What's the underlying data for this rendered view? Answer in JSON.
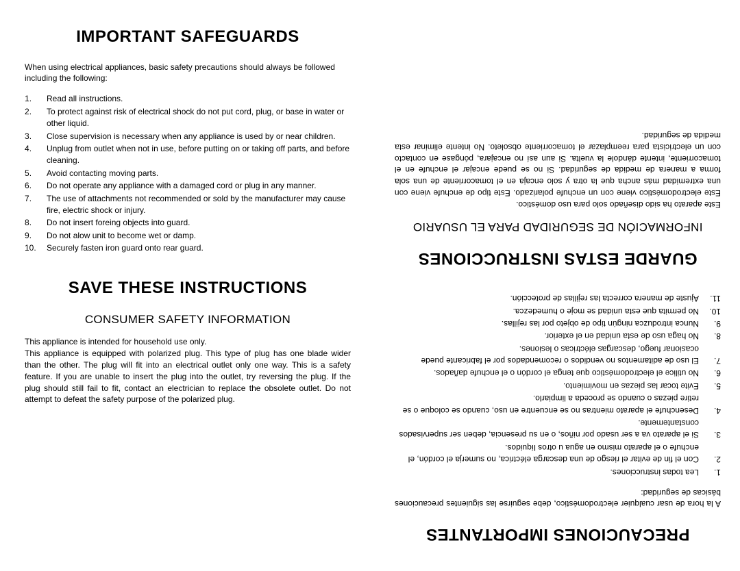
{
  "left": {
    "title": "IMPORTANT SAFEGUARDS",
    "intro": "When using electrical appliances, basic safety precautions should always be followed including the following:",
    "items": [
      "Read all instructions.",
      "To protect against risk of electrical shock do not put cord, plug, or base in water or other liquid.",
      "Close supervision is necessary when any appliance is used by or near children.",
      "Unplug from outlet when not in use, before putting on or taking off parts, and before cleaning.",
      "Avoid contacting moving parts.",
      "Do not operate any appliance with a damaged cord or plug in any manner.",
      "The use of attachments not recommended or sold by the manufacturer may cause fire, electric shock or injury.",
      "Do not insert foreing objects into guard.",
      "Do not alow unit to become wet or damp.",
      "Securely fasten iron guard onto rear guard."
    ],
    "save": "SAVE THESE INSTRUCTIONS",
    "subhead": "CONSUMER SAFETY INFORMATION",
    "p1": "This appliance is intended for household use only.",
    "p2": "This appliance is equipped with polarized plug. This type of plug has one blade wider than the other. The plug will fit into an electrical outlet only one way. This is a safety feature. If you are unable to insert the plug into the outlet, try reversing the plug. If the plug should still fail to fit, contact an electrician to replace the obsolete outlet. Do not attempt to defeat the safety purpose of the polarized plug."
  },
  "right": {
    "title": "PRECAUCIONES IMPORTANTES",
    "intro": "A la hora de usar cualquier electrodoméstico, debe seguirse las siguientes precauciones básicas de seguridad:",
    "items": [
      "Lea todas instrucciones.",
      "Con el fin de evitar el riesgo de una descarga eléctrica, no sumerja el cordón, el enchufe o el aparato mismo en agua u otros líquidos.",
      "Si el aparato va a ser usado por niños, o en su presencia, deben ser supervisados constantemente.",
      "Desenchufe el aparato mientras no se encuentre en uso, cuando se coloque o se retire piezas o cuando se proceda a limpiarlo.",
      "Evite tocar las piezas en movimiento.",
      "No utilice el electrodoméstico que tenga el cordón o el enchufe dañados.",
      "El uso de aditamentos no vendidos o recomendados por el fabricante puede ocasionar fuego, descargas eléctricas o lesiones.",
      "No haga uso de esta unidad en el    exterior.",
      "Nunca introduzca ningún tipo de objeto por las rejillas.",
      "No permita que esta unidad se moje o humedezca.",
      "Ajuste de manera correcta las rejillas de protección."
    ],
    "save": "GUARDE ESTAS INSTRUCCIONES",
    "subhead": "INFORMACIÓN DE SEGURIDAD PARA EL USUARIO",
    "p1": "Este aparato ha sido diseñado solo para uso doméstico.",
    "p2": "Este electrodoméstico viene con un enchufe polarizado. Este tipo de enchufe viene con una extremidad más ancha que la otra y solo encaja en el tomacorriente de una sola forma a manera de medida de seguridad. Si no se puede encajar el enchufe en el tomacorriente, intente dándole la vuelta. Si aun así no encajara, póngase en contacto con un electricista para reemplazar el tomacorriente obsoleto. No intente eliminar esta medida de seguridad."
  }
}
